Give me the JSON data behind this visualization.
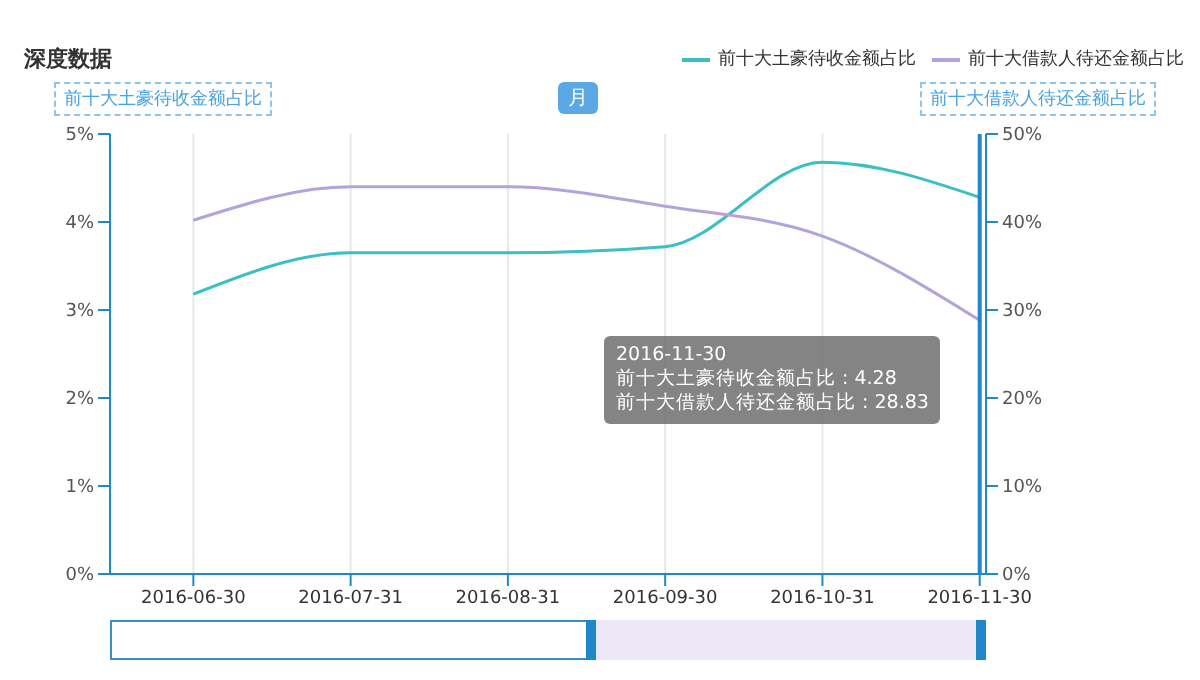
{
  "chart_data": {
    "type": "line",
    "title": "深度数据",
    "ylabel": "前十大土豪待收金额占比",
    "y2label": "前十大借款人待还金额占比",
    "categories": [
      "2016-06-30",
      "2016-07-31",
      "2016-08-31",
      "2016-09-30",
      "2016-10-31",
      "2016-11-30"
    ],
    "series": [
      {
        "name": "前十大土豪待收金额占比",
        "color": "#3bbfc4",
        "values": [
          3.18,
          3.65,
          3.65,
          3.72,
          4.68,
          4.28
        ]
      },
      {
        "name": "前十大借款人待还金额占比",
        "color": "#b4a3da",
        "axis": "y2",
        "values": [
          40.2,
          44,
          44,
          41.8,
          38.4,
          28.83
        ]
      }
    ],
    "ylim": [
      0,
      5
    ],
    "yticks": [
      {
        "value": 0,
        "label": "0%"
      },
      {
        "value": 1,
        "label": "1%"
      },
      {
        "value": 2,
        "label": "2%"
      },
      {
        "value": 3,
        "label": "3%"
      },
      {
        "value": 4,
        "label": "4%"
      },
      {
        "value": 5,
        "label": "5%"
      }
    ],
    "y2lim": [
      0,
      50
    ],
    "y2ticks": [
      {
        "value": 0,
        "label": "0%"
      },
      {
        "value": 10,
        "label": "10%"
      },
      {
        "value": 20,
        "label": "20%"
      },
      {
        "value": 30,
        "label": "30%"
      },
      {
        "value": 40,
        "label": "40%"
      },
      {
        "value": 50,
        "label": "50%"
      }
    ],
    "ref_lines": [
      {
        "axis": "x",
        "value": "2016-11-30",
        "color": "#1e88c8"
      }
    ],
    "annotations": [
      "月",
      "2016-11-30",
      "前十大土豪待收金额占比 : 4.28",
      "前十大借款人待还金额占比 : 28.83"
    ],
    "grid": true,
    "legend": "top right",
    "marker": "none",
    "line_style": "solid"
  }
}
